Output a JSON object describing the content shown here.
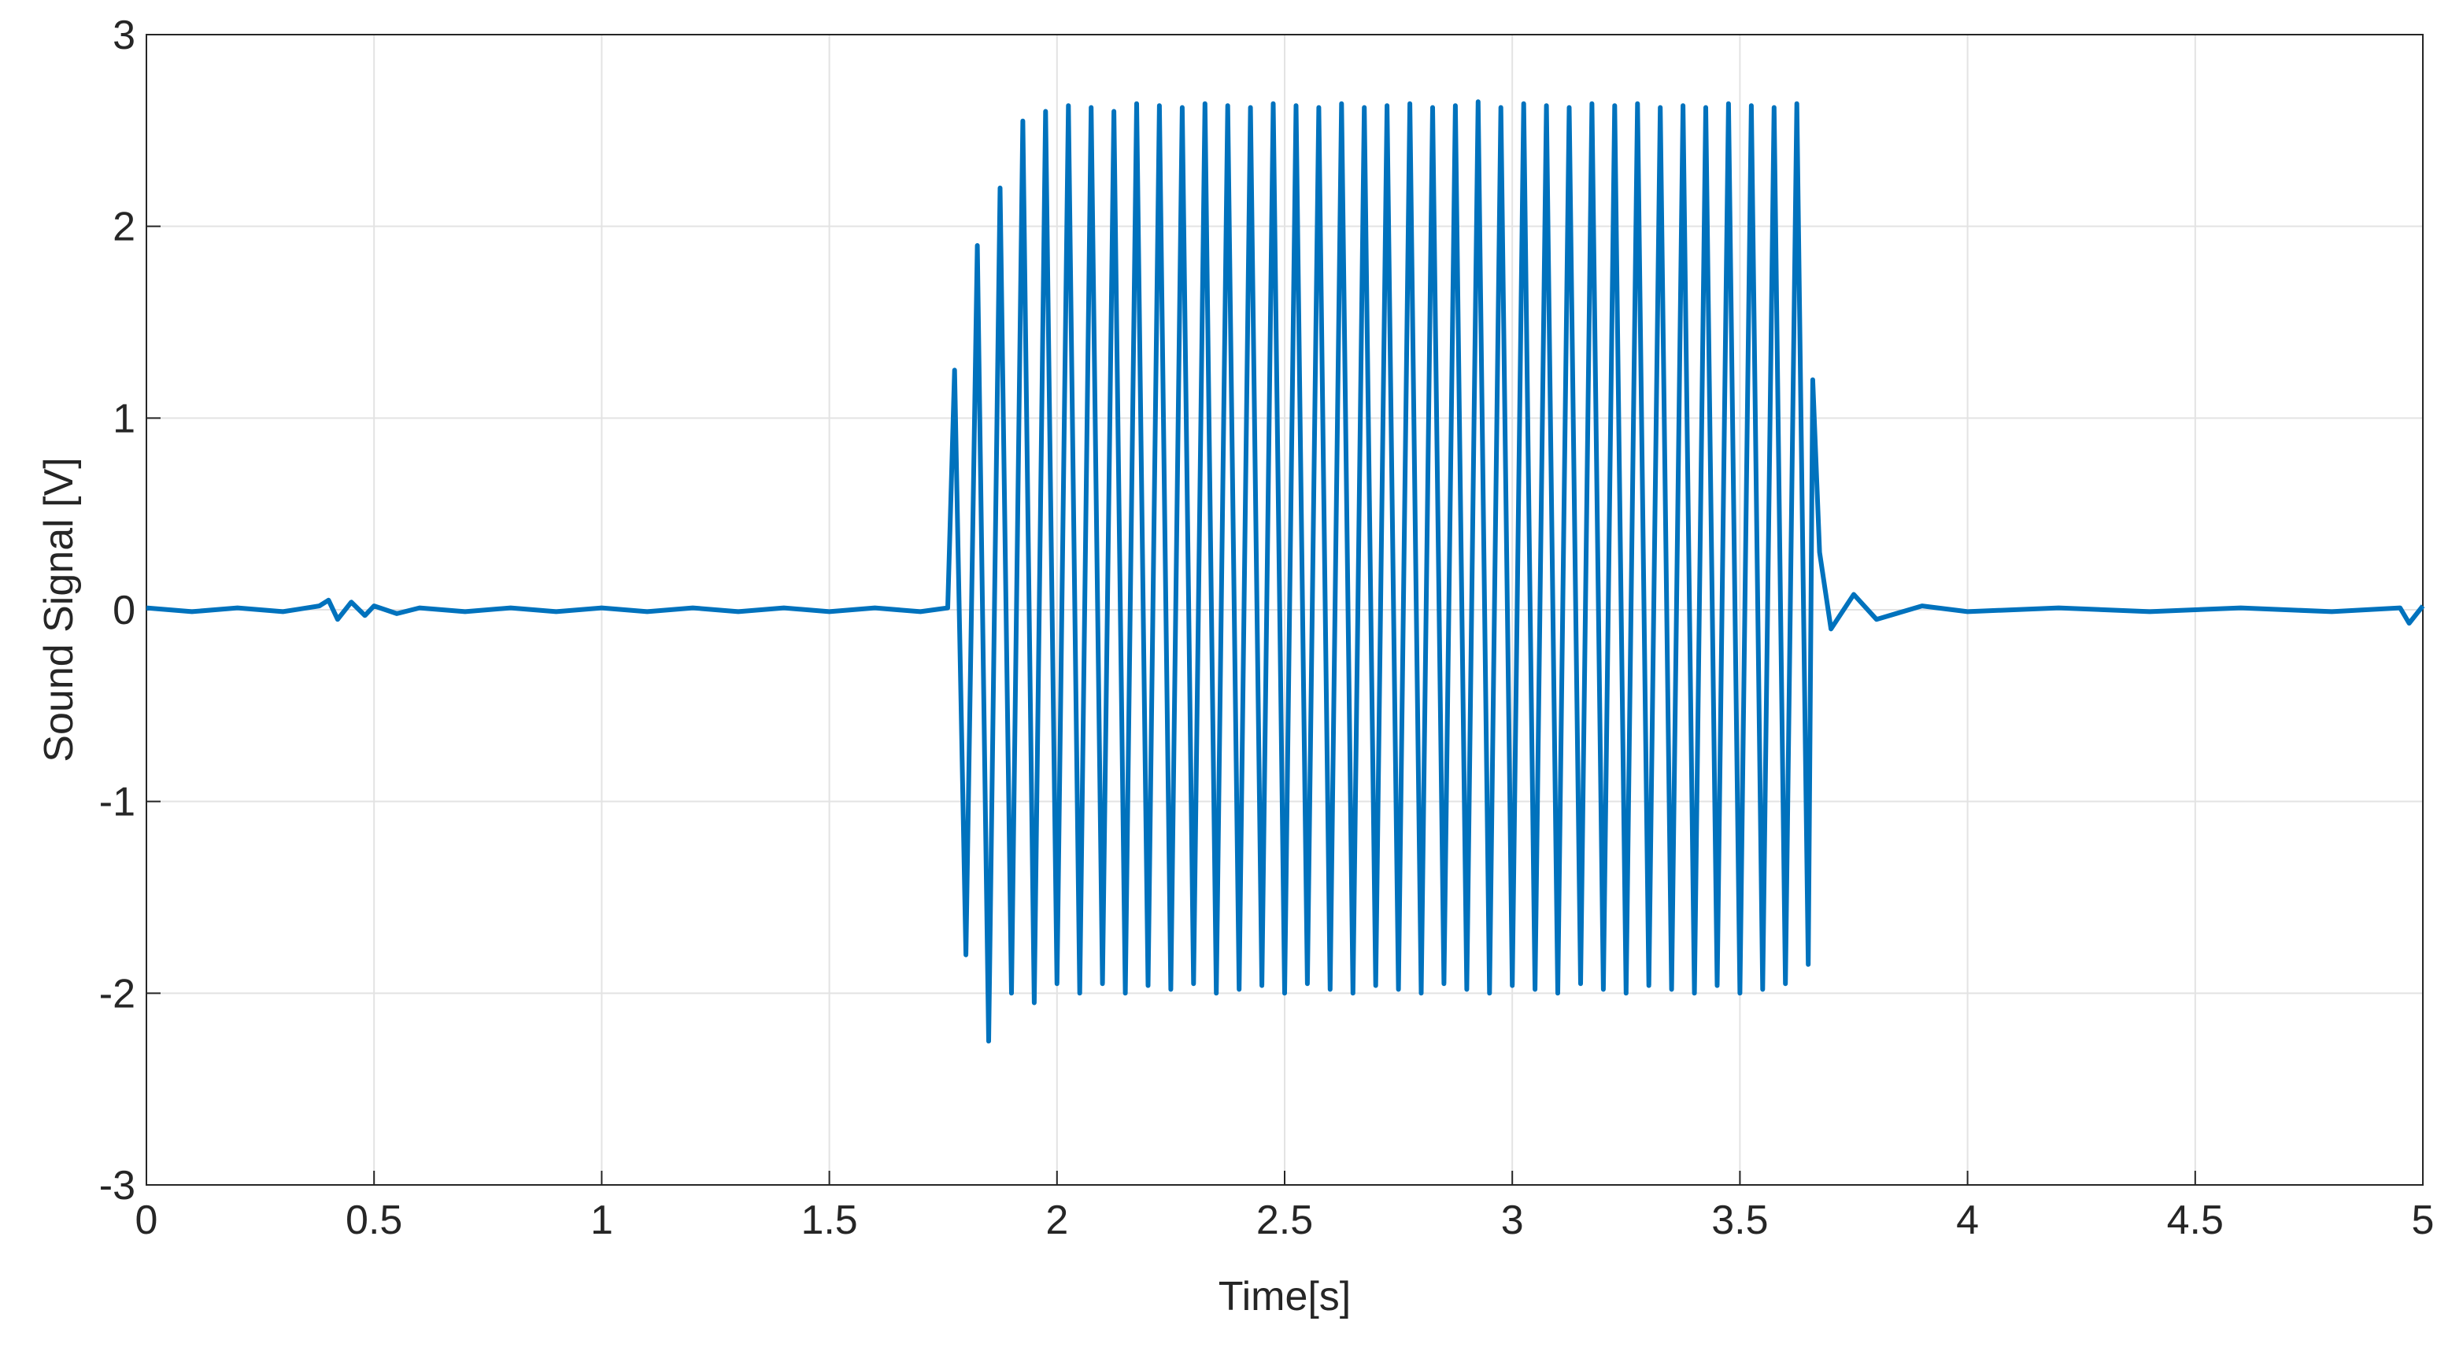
{
  "chart_data": {
    "type": "line",
    "xlabel": "Time[s]",
    "ylabel": "Sound Signal [V]",
    "xlim": [
      0,
      5
    ],
    "xticks": [
      0,
      0.5,
      1,
      1.5,
      2,
      2.5,
      3,
      3.5,
      4,
      4.5,
      5
    ],
    "ylim": [
      -3,
      3
    ],
    "yticks": [
      -3,
      -2,
      -1,
      0,
      1,
      2,
      3
    ],
    "grid": true,
    "series": [
      {
        "color": "#0072bd",
        "x": [
          0,
          0.1,
          0.2,
          0.3,
          0.38,
          0.4,
          0.42,
          0.45,
          0.48,
          0.5,
          0.55,
          0.6,
          0.7,
          0.8,
          0.9,
          1.0,
          1.1,
          1.2,
          1.3,
          1.4,
          1.5,
          1.6,
          1.7,
          1.76,
          1.775,
          1.8,
          1.825,
          1.85,
          1.875,
          1.9,
          1.925,
          1.95,
          1.975,
          2,
          2.025,
          2.05,
          2.075,
          2.1,
          2.125,
          2.15,
          2.175,
          2.2,
          2.225,
          2.25,
          2.275,
          2.3,
          2.325,
          2.35,
          2.375,
          2.4,
          2.425,
          2.45,
          2.475,
          2.5,
          2.525,
          2.55,
          2.575,
          2.6,
          2.625,
          2.65,
          2.675,
          2.7,
          2.725,
          2.75,
          2.775,
          2.8,
          2.825,
          2.85,
          2.875,
          2.9,
          2.925,
          2.95,
          2.975,
          3,
          3.025,
          3.05,
          3.075,
          3.1,
          3.125,
          3.15,
          3.175,
          3.2,
          3.225,
          3.25,
          3.275,
          3.3,
          3.325,
          3.35,
          3.375,
          3.4,
          3.425,
          3.45,
          3.475,
          3.5,
          3.525,
          3.55,
          3.575,
          3.6,
          3.625,
          3.65,
          3.66,
          3.675,
          3.7,
          3.75,
          3.8,
          3.9,
          4.0,
          4.2,
          4.4,
          4.6,
          4.8,
          4.95,
          4.97,
          5
        ],
        "values": [
          0.01,
          -0.01,
          0.01,
          -0.01,
          0.02,
          0.05,
          -0.05,
          0.04,
          -0.03,
          0.02,
          -0.02,
          0.01,
          -0.01,
          0.01,
          -0.01,
          0.01,
          -0.01,
          0.01,
          -0.01,
          0.01,
          -0.01,
          0.01,
          -0.01,
          0.01,
          1.25,
          -1.8,
          1.9,
          -2.25,
          2.2,
          -2.0,
          2.55,
          -2.05,
          2.6,
          -1.95,
          2.63,
          -2.0,
          2.62,
          -1.95,
          2.6,
          -2.0,
          2.64,
          -1.96,
          2.63,
          -1.98,
          2.62,
          -1.95,
          2.64,
          -2.0,
          2.63,
          -1.98,
          2.62,
          -1.96,
          2.64,
          -2.0,
          2.63,
          -1.95,
          2.62,
          -1.98,
          2.64,
          -2.0,
          2.62,
          -1.96,
          2.63,
          -1.98,
          2.64,
          -2.0,
          2.62,
          -1.95,
          2.63,
          -1.98,
          2.65,
          -2.0,
          2.62,
          -1.96,
          2.64,
          -1.98,
          2.63,
          -2.0,
          2.62,
          -1.95,
          2.64,
          -1.98,
          2.63,
          -2.0,
          2.64,
          -1.96,
          2.62,
          -1.98,
          2.63,
          -2.0,
          2.62,
          -1.96,
          2.64,
          -2.0,
          2.63,
          -1.98,
          2.62,
          -1.95,
          2.64,
          -1.85,
          1.2,
          0.3,
          -0.1,
          0.08,
          -0.05,
          0.02,
          -0.01,
          0.01,
          -0.01,
          0.01,
          -0.01,
          0.01,
          -0.07,
          0.02
        ]
      }
    ]
  }
}
